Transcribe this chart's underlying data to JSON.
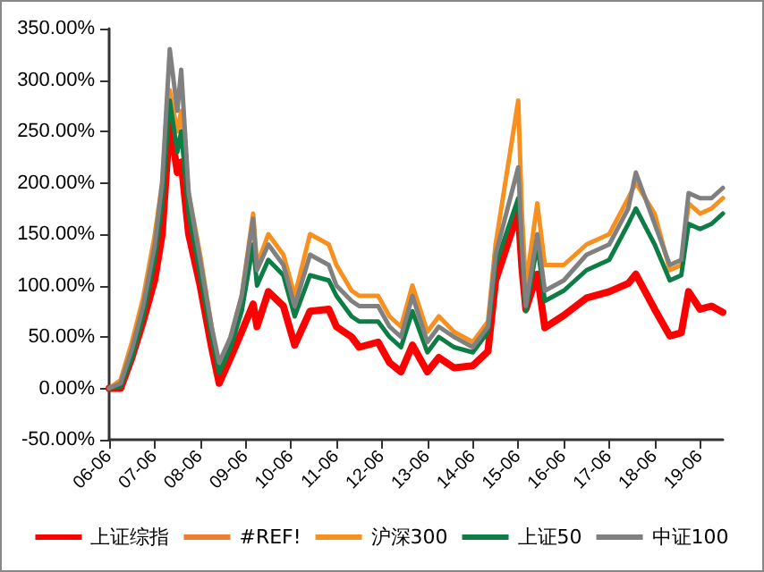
{
  "chart_data": {
    "type": "line",
    "x": [
      "2006-06",
      "2006-09",
      "2006-12",
      "2007-03",
      "2007-06",
      "2007-08",
      "2007-10",
      "2007-12",
      "2008-01",
      "2008-03",
      "2008-06",
      "2008-09",
      "2008-11",
      "2009-02",
      "2009-05",
      "2009-08",
      "2009-09",
      "2009-12",
      "2010-04",
      "2010-07",
      "2010-11",
      "2011-04",
      "2011-06",
      "2011-10",
      "2011-12",
      "2012-05",
      "2012-08",
      "2012-11",
      "2013-02",
      "2013-06",
      "2013-09",
      "2014-01",
      "2014-06",
      "2014-10",
      "2014-12",
      "2015-06",
      "2015-07",
      "2015-08",
      "2015-11",
      "2016-01",
      "2016-06",
      "2016-12",
      "2017-06",
      "2017-11",
      "2018-01",
      "2018-06",
      "2018-10",
      "2019-01",
      "2019-03",
      "2019-06",
      "2019-09",
      "2019-12"
    ],
    "series": [
      {
        "name": "上证综指",
        "color": "#ff0000",
        "values": [
          0,
          0,
          30,
          65,
          105,
          150,
          260,
          210,
          220,
          150,
          100,
          40,
          5,
          30,
          55,
          82,
          60,
          94,
          80,
          42,
          75,
          77,
          60,
          50,
          40,
          45,
          25,
          16,
          42,
          16,
          30,
          20,
          22,
          36,
          105,
          172,
          117,
          77,
          111,
          59,
          71,
          88,
          94,
          102,
          111,
          77,
          51,
          54,
          94,
          77,
          80,
          74
        ]
      },
      {
        "name": "#REF!",
        "color": "#ed7d31",
        "values": [
          null,
          null,
          null,
          null,
          null,
          null,
          null,
          null,
          null,
          null,
          null,
          null,
          null,
          null,
          null,
          null,
          null,
          null,
          null,
          null,
          null,
          null,
          null,
          null,
          null,
          null,
          null,
          null,
          null,
          null,
          null,
          null,
          null,
          null,
          null,
          null,
          null,
          null,
          null,
          null,
          null,
          null,
          null,
          null,
          null,
          null,
          null,
          null,
          null,
          null,
          null,
          null
        ]
      },
      {
        "name": "沪深300",
        "color": "#f7901e",
        "values": [
          0,
          8,
          45,
          88,
          148,
          200,
          290,
          250,
          270,
          190,
          130,
          60,
          20,
          50,
          90,
          170,
          120,
          150,
          130,
          90,
          150,
          140,
          120,
          95,
          90,
          90,
          70,
          60,
          100,
          55,
          70,
          55,
          45,
          65,
          140,
          280,
          170,
          100,
          180,
          120,
          120,
          140,
          150,
          185,
          200,
          170,
          115,
          120,
          180,
          170,
          175,
          185
        ]
      },
      {
        "name": "上证50",
        "color": "#0e7c45",
        "values": [
          0,
          2,
          30,
          70,
          125,
          180,
          280,
          230,
          250,
          170,
          110,
          50,
          15,
          40,
          75,
          140,
          100,
          125,
          110,
          70,
          110,
          105,
          90,
          70,
          65,
          65,
          50,
          40,
          75,
          35,
          50,
          40,
          35,
          55,
          120,
          185,
          130,
          75,
          140,
          85,
          95,
          115,
          125,
          160,
          175,
          140,
          105,
          110,
          160,
          155,
          160,
          170
        ]
      },
      {
        "name": "中证100",
        "color": "#808080",
        "values": [
          0,
          5,
          38,
          80,
          138,
          200,
          330,
          270,
          310,
          190,
          125,
          60,
          25,
          50,
          90,
          165,
          115,
          140,
          120,
          80,
          130,
          120,
          100,
          85,
          80,
          80,
          60,
          50,
          90,
          45,
          60,
          50,
          40,
          60,
          130,
          215,
          140,
          80,
          150,
          95,
          105,
          130,
          140,
          175,
          210,
          160,
          120,
          125,
          190,
          185,
          185,
          195
        ]
      }
    ],
    "xlim": [
      "2006-06",
      "2019-12"
    ],
    "xticks": [
      {
        "value": "2006-06",
        "label": "06-06"
      },
      {
        "value": "2007-06",
        "label": "07-06"
      },
      {
        "value": "2008-06",
        "label": "08-06"
      },
      {
        "value": "2009-06",
        "label": "09-06"
      },
      {
        "value": "2010-06",
        "label": "10-06"
      },
      {
        "value": "2011-06",
        "label": "11-06"
      },
      {
        "value": "2012-06",
        "label": "12-06"
      },
      {
        "value": "2013-06",
        "label": "13-06"
      },
      {
        "value": "2014-06",
        "label": "14-06"
      },
      {
        "value": "2015-06",
        "label": "15-06"
      },
      {
        "value": "2016-06",
        "label": "16-06"
      },
      {
        "value": "2017-06",
        "label": "17-06"
      },
      {
        "value": "2018-06",
        "label": "18-06"
      },
      {
        "value": "2019-06",
        "label": "19-06"
      }
    ],
    "ylim": [
      -50,
      350
    ],
    "yticks": [
      {
        "value": -50,
        "label": "-50.00%"
      },
      {
        "value": 0,
        "label": "0.00%"
      },
      {
        "value": 50,
        "label": "50.00%"
      },
      {
        "value": 100,
        "label": "100.00%"
      },
      {
        "value": 150,
        "label": "150.00%"
      },
      {
        "value": 200,
        "label": "200.00%"
      },
      {
        "value": 250,
        "label": "250.00%"
      },
      {
        "value": 300,
        "label": "300.00%"
      },
      {
        "value": 350,
        "label": "350.00%"
      }
    ],
    "grid": false,
    "legend": "bottom",
    "marker": "none",
    "line_style": "solid"
  }
}
